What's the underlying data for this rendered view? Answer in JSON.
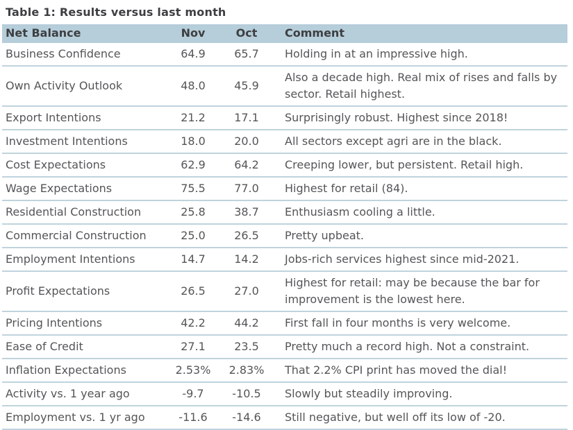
{
  "title": "Table 1: Results versus last month",
  "colors": {
    "header_background": "#b6cdda",
    "row_divider": "#bfd3dd",
    "title_text": "#3d3f41",
    "body_text": "#545557"
  },
  "table": {
    "columns": {
      "label": "Net Balance",
      "nov": "Nov",
      "oct": "Oct",
      "comment": "Comment"
    },
    "rows": [
      {
        "label": "Business Confidence",
        "nov": "64.9",
        "oct": "65.7",
        "comment": "Holding in at an impressive high."
      },
      {
        "label": "Own Activity Outlook",
        "nov": "48.0",
        "oct": "45.9",
        "comment": "Also a decade high. Real mix of rises and falls by sector. Retail highest."
      },
      {
        "label": "Export Intentions",
        "nov": "21.2",
        "oct": "17.1",
        "comment": "Surprisingly robust. Highest since 2018!"
      },
      {
        "label": "Investment Intentions",
        "nov": "18.0",
        "oct": "20.0",
        "comment": "All sectors except agri are in the black."
      },
      {
        "label": "Cost Expectations",
        "nov": "62.9",
        "oct": "64.2",
        "comment": "Creeping lower, but persistent. Retail high."
      },
      {
        "label": "Wage Expectations",
        "nov": "75.5",
        "oct": "77.0",
        "comment": "Highest for retail (84)."
      },
      {
        "label": "Residential Construction",
        "nov": "25.8",
        "oct": "38.7",
        "comment": "Enthusiasm cooling a little."
      },
      {
        "label": "Commercial Construction",
        "nov": "25.0",
        "oct": "26.5",
        "comment": "Pretty upbeat."
      },
      {
        "label": "Employment Intentions",
        "nov": "14.7",
        "oct": "14.2",
        "comment": "Jobs-rich services highest since mid-2021."
      },
      {
        "label": "Profit Expectations",
        "nov": "26.5",
        "oct": "27.0",
        "comment": "Highest for retail: may be because the bar for improvement is the lowest here."
      },
      {
        "label": "Pricing Intentions",
        "nov": "42.2",
        "oct": "44.2",
        "comment": "First fall in four months is very welcome."
      },
      {
        "label": "Ease of Credit",
        "nov": "27.1",
        "oct": "23.5",
        "comment": "Pretty much a record high. Not a constraint."
      },
      {
        "label": "Inflation Expectations",
        "nov": "2.53%",
        "oct": "2.83%",
        "comment": "That 2.2% CPI print has moved the dial!"
      },
      {
        "label": "Activity vs. 1 year ago",
        "nov": "-9.7",
        "oct": "-10.5",
        "comment": "Slowly but steadily improving."
      },
      {
        "label": "Employment vs. 1 yr ago",
        "nov": "-11.6",
        "oct": "-14.6",
        "comment": "Still negative, but well off its low of -20."
      }
    ]
  }
}
